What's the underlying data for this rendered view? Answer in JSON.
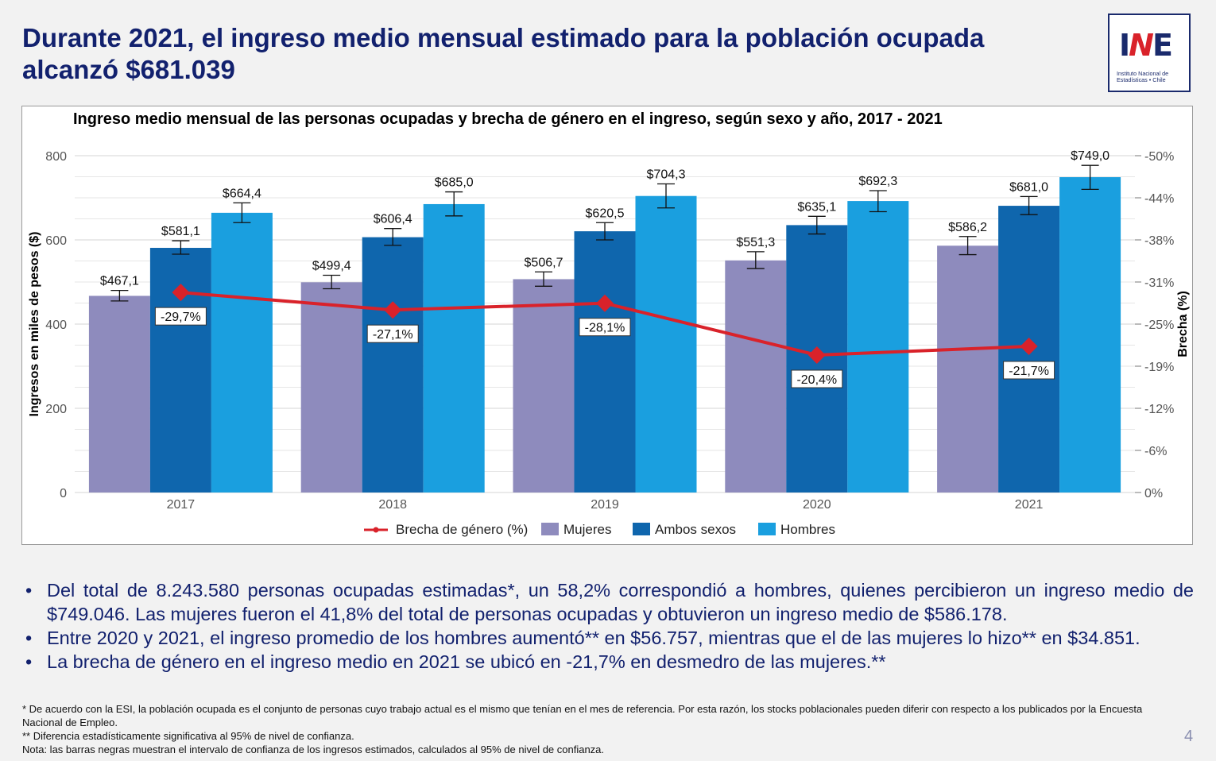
{
  "title": "Durante 2021, el ingreso medio mensual estimado para la población ocupada alcanzó $681.039",
  "logo": {
    "mark": "INE",
    "subtitle": "Instituto Nacional de Estadísticas • Chile"
  },
  "chart_data": {
    "type": "bar",
    "title": "Ingreso medio mensual de las personas ocupadas y brecha de género en el ingreso, según sexo y año, 2017 - 2021",
    "ylabel": "Ingresos en miles de pesos ($)",
    "y2label": "Brecha (%)",
    "ylim": [
      0,
      800
    ],
    "y2lim": [
      0,
      -50
    ],
    "yticks": [
      "0",
      "200",
      "400",
      "600",
      "800"
    ],
    "y2ticks": [
      "0%",
      "-6%",
      "-12%",
      "-19%",
      "-25%",
      "-31%",
      "-38%",
      "-44%",
      "-50%"
    ],
    "categories": [
      "2017",
      "2018",
      "2019",
      "2020",
      "2021"
    ],
    "grid": true,
    "legend_position": "bottom",
    "series": [
      {
        "name": "Mujeres",
        "color": "#8e8bbd",
        "values": [
          467.1,
          499.4,
          506.7,
          551.3,
          586.2
        ],
        "labels": [
          "$467,1",
          "$499,4",
          "$506,7",
          "$551,3",
          "$586,2"
        ],
        "ci": [
          [
            455,
            480
          ],
          [
            484,
            516
          ],
          [
            490,
            524
          ],
          [
            532,
            572
          ],
          [
            565,
            608
          ]
        ]
      },
      {
        "name": "Ambos sexos",
        "color": "#0f66ad",
        "values": [
          581.1,
          606.4,
          620.5,
          635.1,
          681.0
        ],
        "labels": [
          "$581,1",
          "$606,4",
          "$620,5",
          "$635,1",
          "$681,0"
        ],
        "ci": [
          [
            566,
            598
          ],
          [
            587,
            627
          ],
          [
            600,
            641
          ],
          [
            614,
            656
          ],
          [
            660,
            703
          ]
        ]
      },
      {
        "name": "Hombres",
        "color": "#1a9fdf",
        "values": [
          664.4,
          685.0,
          704.3,
          692.3,
          749.0
        ],
        "labels": [
          "$664,4",
          "$685,0",
          "$704,3",
          "$692,3",
          "$749,0"
        ],
        "ci": [
          [
            641,
            688
          ],
          [
            657,
            714
          ],
          [
            676,
            733
          ],
          [
            667,
            717
          ],
          [
            720,
            777
          ]
        ]
      }
    ],
    "line_series": {
      "name": "Brecha de género (%)",
      "color": "#d9222a",
      "axis": "right",
      "values": [
        -29.7,
        -27.1,
        -28.1,
        -20.4,
        -21.7
      ],
      "labels": [
        "-29,7%",
        "-27,1%",
        "-28,1%",
        "-20,4%",
        "-21,7%"
      ]
    },
    "legend": [
      "Brecha de género (%)",
      "Mujeres",
      "Ambos sexos",
      "Hombres"
    ]
  },
  "bullets": [
    "Del total de 8.243.580 personas ocupadas estimadas*, un 58,2% correspondió a hombres, quienes percibieron un ingreso medio de $749.046. Las mujeres fueron el 41,8% del total de personas ocupadas y obtuvieron un ingreso medio de $586.178.",
    "Entre 2020 y 2021, el ingreso promedio de los hombres aumentó** en $56.757, mientras que el de las mujeres lo hizo** en $34.851.",
    "La brecha de género en el ingreso medio en 2021 se ubicó en -21,7% en desmedro de las mujeres.**"
  ],
  "footnotes": [
    "* De acuerdo con la ESI, la población ocupada es el conjunto de personas cuyo trabajo actual es el mismo que tenían en el mes de referencia. Por esta razón, los stocks poblacionales pueden diferir con respecto a los publicados por la Encuesta Nacional de Empleo.",
    "** Diferencia estadísticamente significativa al 95% de nivel de confianza.",
    "Nota: las barras negras muestran el intervalo de confianza de los ingresos estimados, calculados al 95% de nivel de confianza."
  ],
  "page_number": "4"
}
